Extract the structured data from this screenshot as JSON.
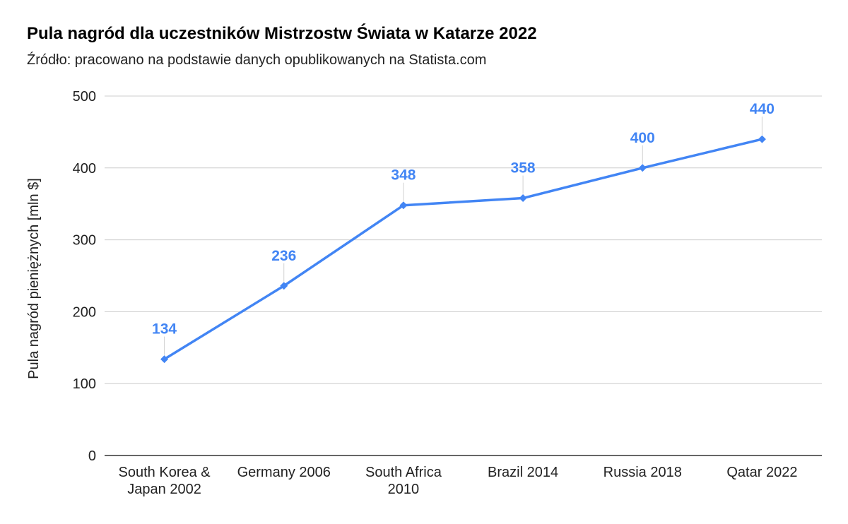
{
  "chart_data": {
    "type": "line",
    "title": "Pula nagród dla uczestników Mistrzostw Świata w Katarze 2022",
    "subtitle": "Źródło: pracowano na podstawie danych opublikowanych na Statista.com",
    "xlabel": "",
    "ylabel": "Pula nagród pieniężnych [mln $]",
    "categories": [
      [
        "South Korea &",
        "Japan 2002"
      ],
      [
        "Germany 2006"
      ],
      [
        "South Africa",
        "2010"
      ],
      [
        "Brazil 2014"
      ],
      [
        "Russia 2018"
      ],
      [
        "Qatar 2022"
      ]
    ],
    "values": [
      134,
      236,
      348,
      358,
      400,
      440
    ],
    "data_labels": [
      "134",
      "236",
      "348",
      "358",
      "400",
      "440"
    ],
    "ylim": [
      0,
      500
    ],
    "yticks": [
      0,
      100,
      200,
      300,
      400,
      500
    ],
    "ytick_labels": [
      "0",
      "100",
      "200",
      "300",
      "400",
      "500"
    ],
    "grid": true,
    "legend": "none",
    "colors": {
      "series": "#4285f4",
      "grid": "#cccccc",
      "axis": "#333333",
      "leader": "#d0d0d0"
    }
  }
}
